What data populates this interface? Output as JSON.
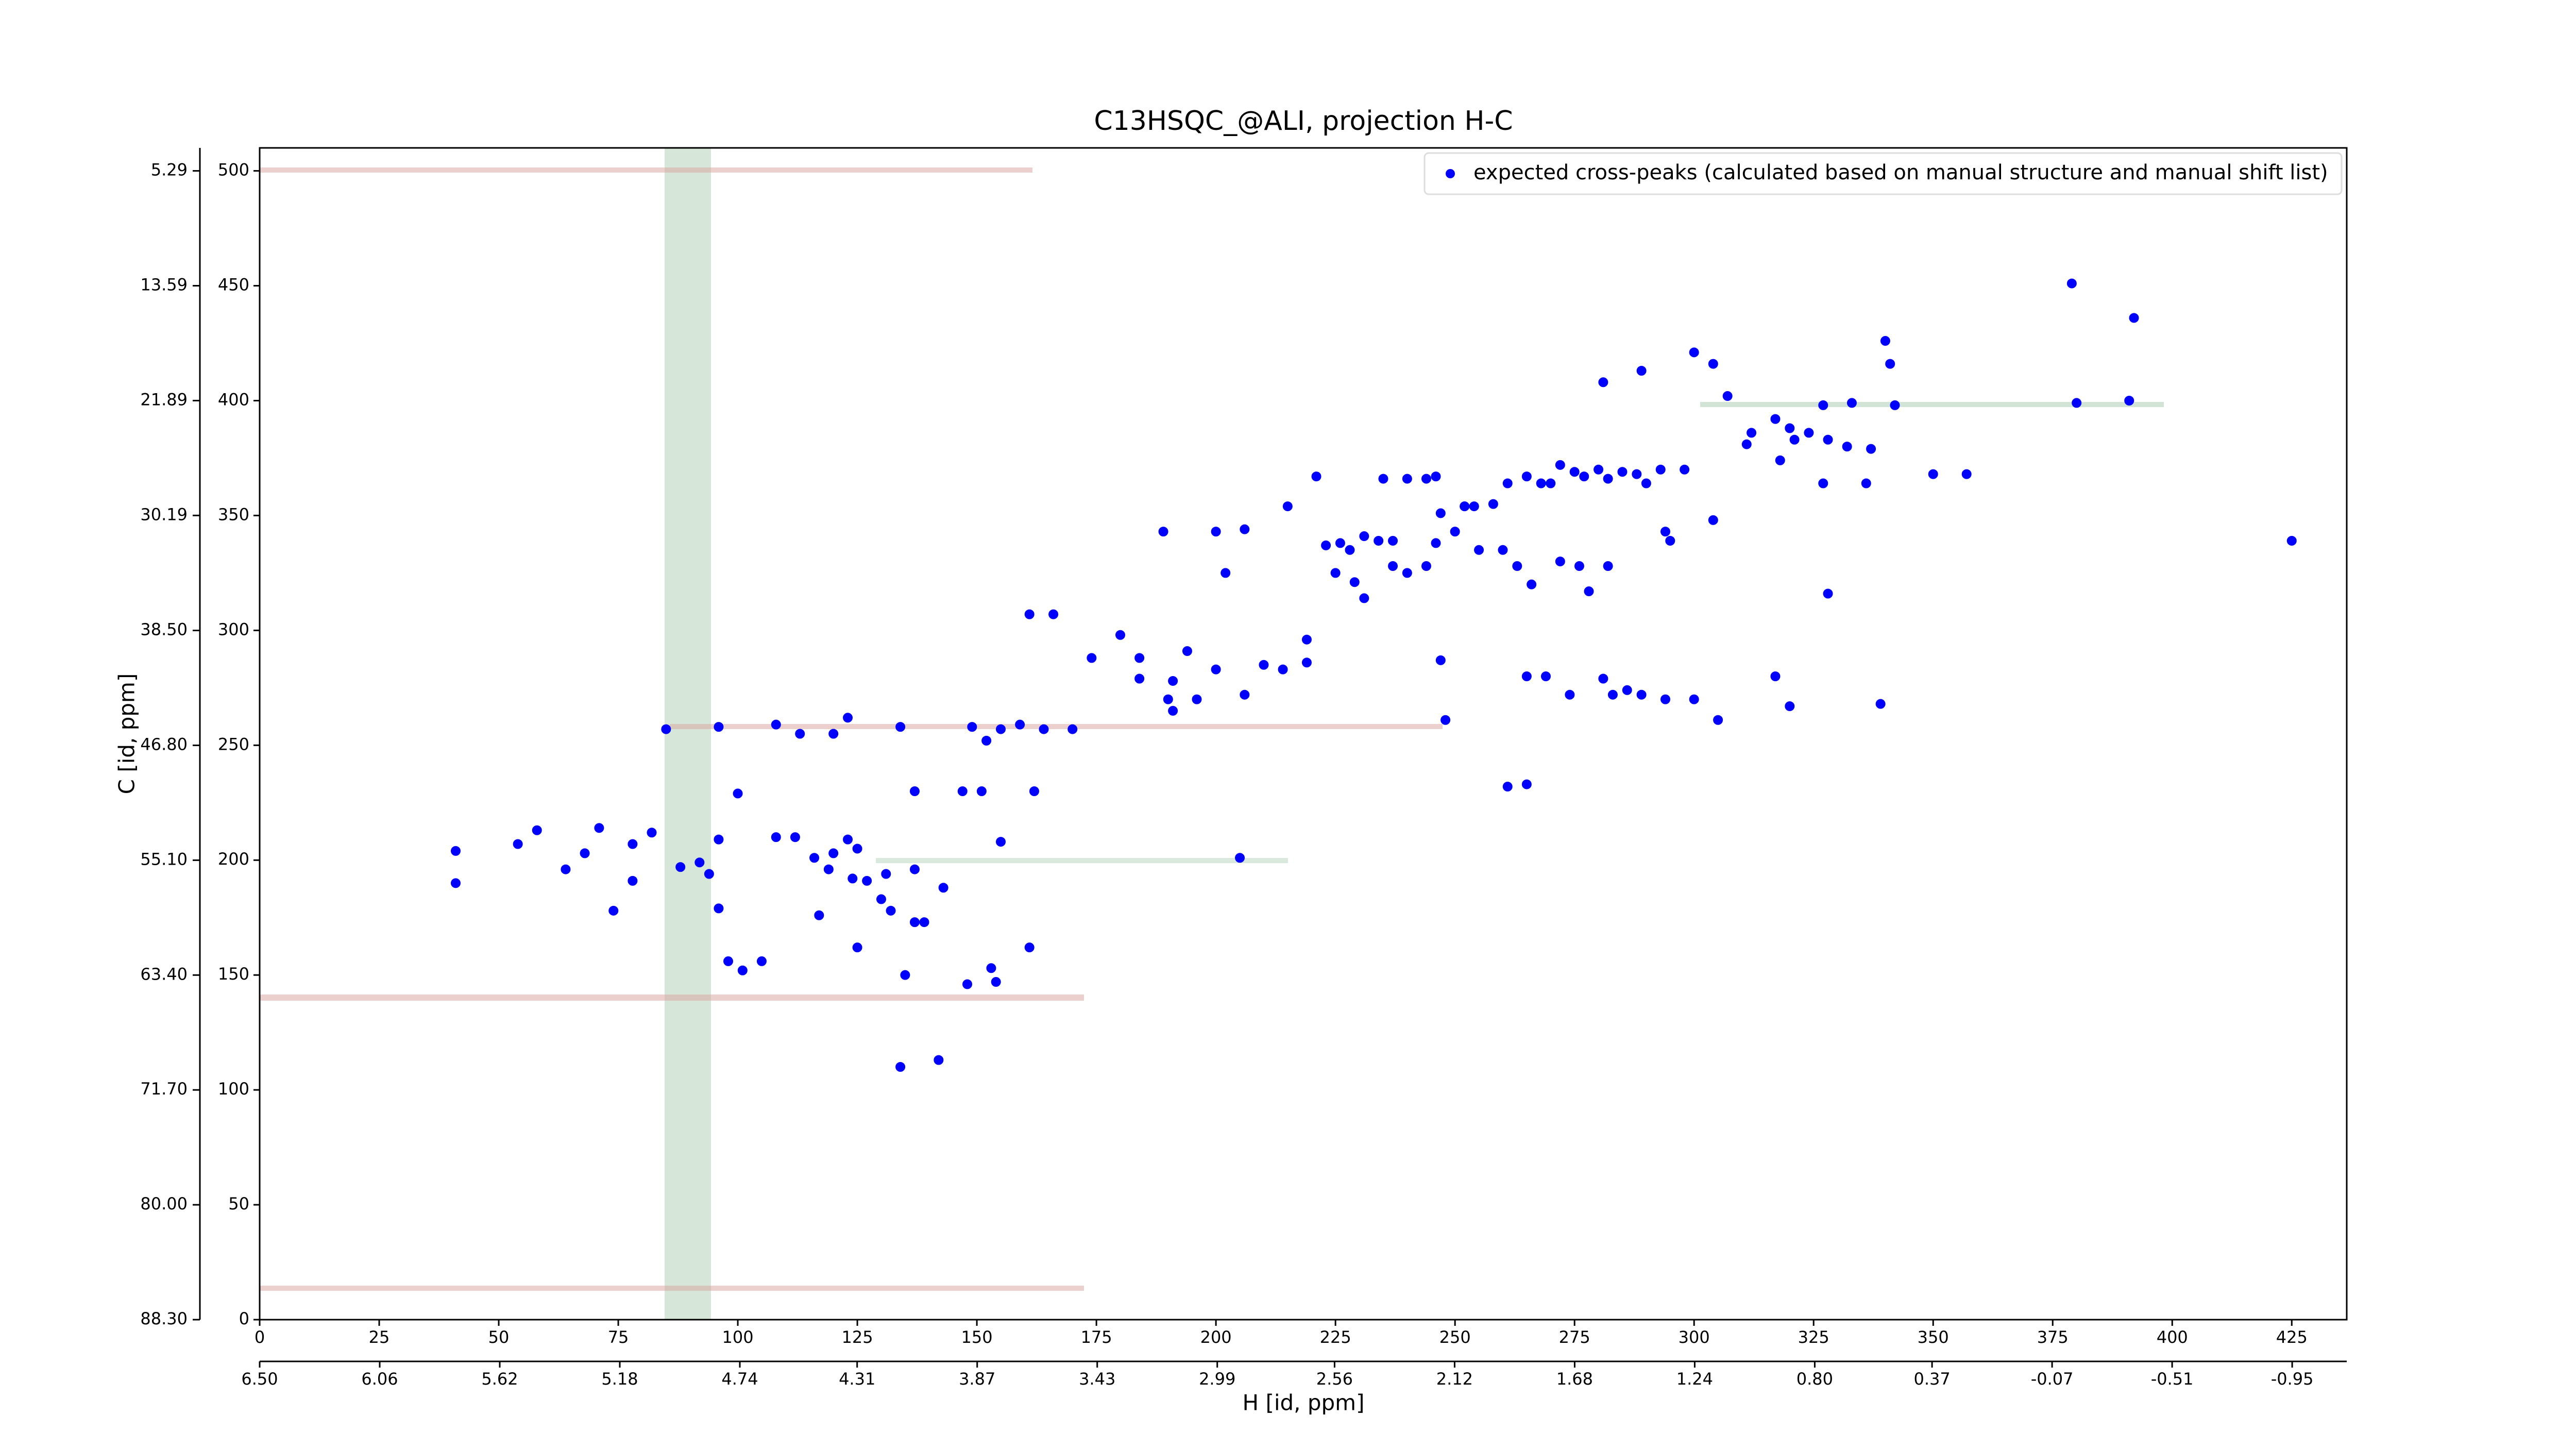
{
  "chart_data": {
    "type": "scatter",
    "title": "C13HSQC_@ALI, projection H-C",
    "xlabel": "H [id, ppm]",
    "ylabel": "C [id, ppm]",
    "xlim": [
      0,
      436.5
    ],
    "ylim": [
      0,
      510
    ],
    "xticks": [
      0,
      25,
      50,
      75,
      100,
      125,
      150,
      175,
      200,
      225,
      250,
      275,
      300,
      325,
      350,
      375,
      400,
      425
    ],
    "yticks": [
      0,
      50,
      100,
      150,
      200,
      250,
      300,
      350,
      400,
      450,
      500
    ],
    "x2lim": [
      6.5,
      -1.15
    ],
    "x2ticks": [
      {
        "value": 6.5,
        "label": "6.50"
      },
      6.06,
      5.62,
      5.18,
      4.74,
      4.31,
      3.87,
      3.43,
      2.99,
      2.56,
      2.12,
      1.68,
      1.24,
      {
        "value": 0.8,
        "label": "0.80"
      },
      0.37,
      -0.07,
      -0.51,
      -0.95
    ],
    "y2lim": [
      88.3,
      3.63
    ],
    "y2ticks": [
      5.29,
      13.59,
      21.89,
      30.19,
      {
        "value": 38.5,
        "label": "38.50"
      },
      {
        "value": 46.8,
        "label": "46.80"
      },
      {
        "value": 55.1,
        "label": "55.10"
      },
      {
        "value": 63.4,
        "label": "63.40"
      },
      {
        "value": 71.7,
        "label": "71.70"
      },
      {
        "value": 80,
        "label": "80.00"
      },
      {
        "value": 88.3,
        "label": "88.30"
      }
    ],
    "legend": "upper right",
    "x": [
      379,
      392,
      340,
      341,
      300,
      304,
      289,
      281,
      307,
      327,
      333,
      342,
      380,
      391,
      317,
      312,
      320,
      311,
      321,
      328,
      332,
      337,
      324,
      318,
      327,
      336,
      350,
      357,
      298,
      293,
      288,
      290,
      285,
      282,
      280,
      277,
      275,
      272,
      270,
      268,
      265,
      261,
      258,
      252,
      254,
      247,
      246,
      240,
      244,
      235,
      221,
      215,
      206,
      200,
      189,
      202,
      223,
      226,
      228,
      231,
      234,
      237,
      225,
      229,
      231,
      240,
      237,
      244,
      246,
      250,
      252,
      255,
      260,
      263,
      266,
      272,
      276,
      278,
      282,
      294,
      295,
      304,
      328,
      425,
      219,
      210,
      214,
      219,
      194,
      191,
      190,
      191,
      196,
      200,
      184,
      180,
      174,
      184,
      161,
      166,
      247,
      265,
      269,
      274,
      281,
      283,
      286,
      289,
      294,
      300,
      305,
      317,
      320,
      339,
      206,
      248,
      261,
      265,
      170,
      164,
      159,
      155,
      152,
      149,
      134,
      123,
      120,
      113,
      108,
      85,
      96,
      100,
      137,
      147,
      151,
      162,
      58,
      54,
      71,
      64,
      68,
      78,
      82,
      41,
      41,
      74,
      78,
      88,
      92,
      94,
      96,
      108,
      112,
      120,
      123,
      125,
      116,
      119,
      124,
      127,
      131,
      137,
      143,
      130,
      132,
      137,
      139,
      117,
      96,
      98,
      105,
      101,
      125,
      135,
      148,
      153,
      154,
      161,
      155,
      205,
      134,
      142
    ],
    "series": [
      {
        "name": "expected cross-peaks (calculated based on manual structure and manual shift list)",
        "color": "#0000ff",
        "values": [
          451,
          436,
          426,
          416,
          421,
          416,
          413,
          408,
          402,
          398,
          399,
          398,
          399,
          400,
          392,
          386,
          388,
          381,
          383,
          383,
          380,
          379,
          386,
          374,
          364,
          364,
          368,
          368,
          370,
          370,
          368,
          364,
          369,
          366,
          370,
          367,
          369,
          372,
          364,
          364,
          367,
          364,
          355,
          354,
          354,
          351,
          367,
          366,
          366,
          366,
          367,
          354,
          344,
          343,
          343,
          325,
          337,
          338,
          335,
          341,
          339,
          339,
          325,
          321,
          314,
          325,
          328,
          328,
          338,
          343,
          354,
          335,
          335,
          328,
          320,
          330,
          328,
          317,
          328,
          343,
          339,
          348,
          316,
          339,
          296,
          285,
          283,
          286,
          291,
          278,
          270,
          265,
          270,
          283,
          279,
          298,
          288,
          288,
          307,
          307,
          287,
          280,
          280,
          272,
          279,
          272,
          274,
          272,
          270,
          270,
          261,
          280,
          267,
          268,
          272,
          261,
          232,
          233,
          257,
          257,
          259,
          257,
          252,
          258,
          258,
          262,
          255,
          255,
          259,
          257,
          258,
          229,
          230,
          230,
          230,
          230,
          213,
          207,
          214,
          196,
          203,
          207,
          212,
          204,
          190,
          178,
          191,
          197,
          199,
          194,
          209,
          210,
          210,
          203,
          209,
          205,
          201,
          196,
          192,
          191,
          194,
          196,
          188,
          183,
          178,
          173,
          173,
          176,
          179,
          156,
          156,
          152,
          162,
          150,
          146,
          153,
          147,
          162,
          208,
          201,
          110,
          113
        ]
      }
    ]
  }
}
